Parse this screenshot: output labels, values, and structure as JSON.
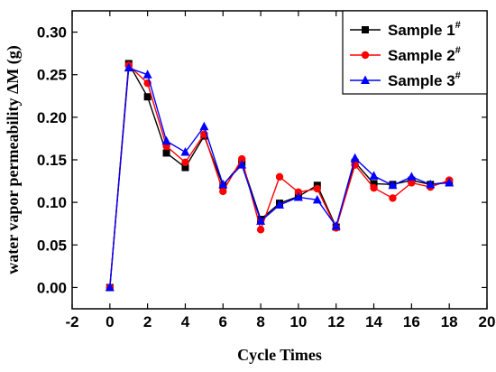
{
  "chart_data": {
    "type": "line",
    "xlabel": "Cycle Times",
    "ylabel": "water vapor permeability ΔM (g)",
    "xlim": [
      -2,
      20
    ],
    "ylim": [
      -0.025,
      0.325
    ],
    "xticks": [
      -2,
      0,
      2,
      4,
      6,
      8,
      10,
      12,
      14,
      16,
      18,
      20
    ],
    "yticks": [
      0.0,
      0.05,
      0.1,
      0.15,
      0.2,
      0.25,
      0.3
    ],
    "xtick_labels": [
      "-2",
      "0",
      "2",
      "4",
      "6",
      "8",
      "10",
      "12",
      "14",
      "16",
      "18",
      "20"
    ],
    "ytick_labels": [
      "0.00",
      "0.05",
      "0.10",
      "0.15",
      "0.20",
      "0.25",
      "0.30"
    ],
    "x": [
      0,
      1,
      2,
      3,
      4,
      5,
      6,
      7,
      8,
      9,
      10,
      11,
      12,
      13,
      14,
      15,
      16,
      17,
      18
    ],
    "legend_position": "top-right",
    "grid": false,
    "series": [
      {
        "name": "Sample 1",
        "superscript": "#",
        "color": "#000000",
        "marker": "square",
        "values": [
          0.0,
          0.263,
          0.224,
          0.158,
          0.141,
          0.178,
          0.12,
          0.147,
          0.08,
          0.099,
          0.107,
          0.12,
          0.071,
          0.147,
          0.122,
          0.121,
          0.126,
          0.121,
          0.124
        ]
      },
      {
        "name": "Sample 2",
        "superscript": "#",
        "color": "#ff0000",
        "marker": "circle",
        "values": [
          0.0,
          0.261,
          0.24,
          0.166,
          0.147,
          0.18,
          0.113,
          0.151,
          0.068,
          0.13,
          0.112,
          0.116,
          0.07,
          0.144,
          0.117,
          0.105,
          0.123,
          0.118,
          0.126
        ]
      },
      {
        "name": "Sample 3",
        "superscript": "#",
        "color": "#0000ff",
        "marker": "triangle",
        "values": [
          0.0,
          0.258,
          0.25,
          0.172,
          0.159,
          0.189,
          0.121,
          0.144,
          0.078,
          0.097,
          0.106,
          0.103,
          0.072,
          0.152,
          0.131,
          0.12,
          0.13,
          0.121,
          0.123
        ]
      }
    ]
  }
}
